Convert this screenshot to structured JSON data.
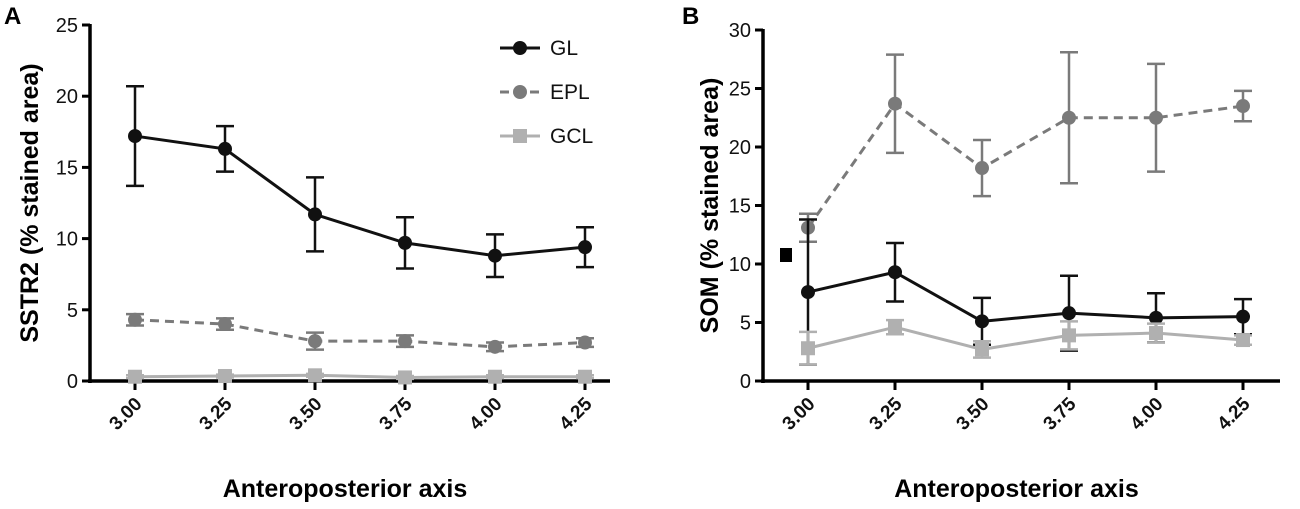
{
  "chart_data": [
    {
      "panel": "A",
      "type": "line",
      "xlabel": "Anteroposterior axis",
      "ylabel": "SSTR2 (% stained area)",
      "categories": [
        "3.00",
        "3.25",
        "3.50",
        "3.75",
        "4.00",
        "4.25"
      ],
      "ylim": [
        0,
        25
      ],
      "yticks": [
        0,
        5,
        10,
        15,
        20,
        25
      ],
      "legend_position": "top-right",
      "series": [
        {
          "name": "GL",
          "style": "solid",
          "marker": "circle",
          "color": "#111111",
          "values": [
            17.2,
            16.3,
            11.7,
            9.7,
            8.8,
            9.4
          ],
          "errors": [
            3.5,
            1.6,
            2.6,
            1.8,
            1.5,
            1.4
          ]
        },
        {
          "name": "EPL",
          "style": "dashed",
          "marker": "circle",
          "color": "#7a7a7a",
          "values": [
            4.3,
            4.0,
            2.8,
            2.8,
            2.4,
            2.7
          ],
          "errors": [
            0.4,
            0.4,
            0.6,
            0.4,
            0.3,
            0.3
          ]
        },
        {
          "name": "GCL",
          "style": "solid",
          "marker": "square",
          "color": "#b0b0b0",
          "values": [
            0.3,
            0.35,
            0.4,
            0.25,
            0.3,
            0.3
          ],
          "errors": [
            0.1,
            0.1,
            0.1,
            0.1,
            0.1,
            0.1
          ]
        }
      ]
    },
    {
      "panel": "B",
      "type": "line",
      "xlabel": "Anteroposterior axis",
      "ylabel": "SOM (% stained area)",
      "categories": [
        "3.00",
        "3.25",
        "3.50",
        "3.75",
        "4.00",
        "4.25"
      ],
      "ylim": [
        0,
        30
      ],
      "yticks": [
        0,
        5,
        10,
        15,
        20,
        25,
        30
      ],
      "annotation": "■",
      "series": [
        {
          "name": "EPL",
          "style": "dashed",
          "marker": "circle",
          "color": "#7a7a7a",
          "values": [
            13.1,
            23.7,
            18.2,
            22.5,
            22.5,
            23.5
          ],
          "errors": [
            1.2,
            4.2,
            2.4,
            5.6,
            4.6,
            1.3
          ]
        },
        {
          "name": "GL",
          "style": "solid",
          "marker": "circle",
          "color": "#111111",
          "values": [
            7.6,
            9.3,
            5.1,
            5.8,
            5.4,
            5.5
          ],
          "errors": [
            6.2,
            2.5,
            2.0,
            3.2,
            2.1,
            1.5
          ]
        },
        {
          "name": "GCL",
          "style": "solid",
          "marker": "square",
          "color": "#b0b0b0",
          "values": [
            2.8,
            4.6,
            2.7,
            3.9,
            4.1,
            3.5
          ],
          "errors": [
            1.4,
            0.6,
            0.7,
            1.2,
            0.8,
            0.4
          ]
        }
      ]
    }
  ]
}
